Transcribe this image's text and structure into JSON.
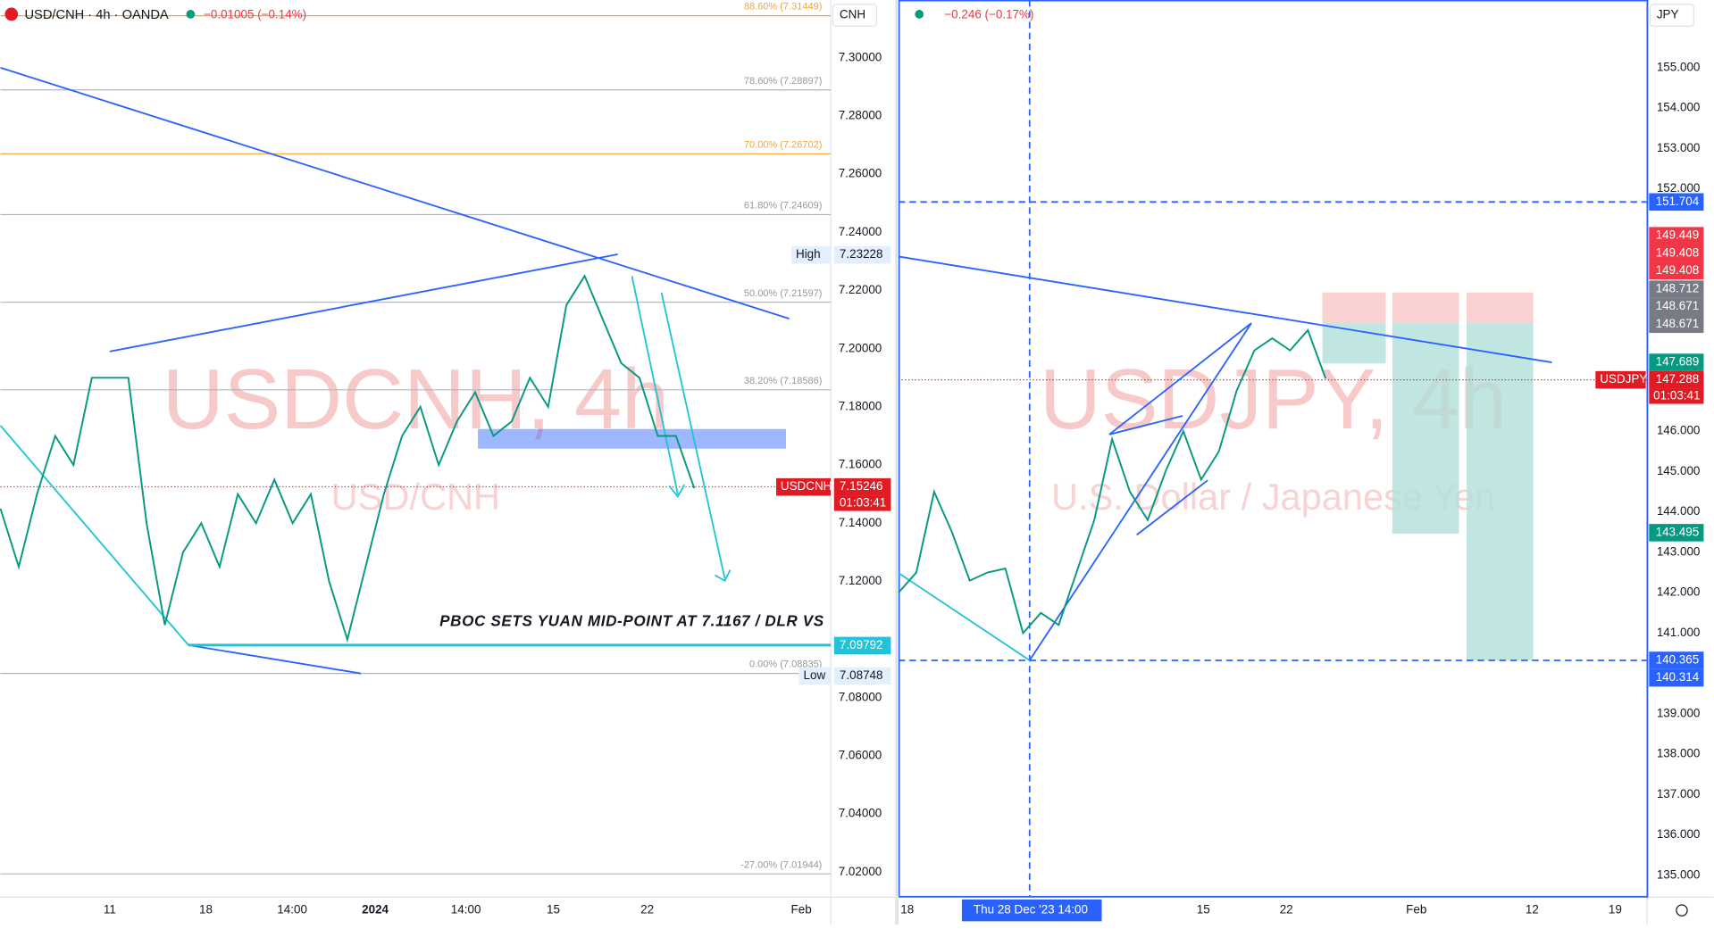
{
  "left": {
    "symbol": "USD/CNH · 4h · OANDA",
    "change": "−0.01005 (−0.14%)",
    "currency": "CNH",
    "watermark": "USDCNH, 4h",
    "watermark_sub": "USD/CNH",
    "annotation": "PBOC SETS YUAN MID-POINT AT 7.1167 / DLR VS",
    "price_labels": [
      "7.30000",
      "7.28000",
      "7.26000",
      "7.24000",
      "7.22000",
      "7.20000",
      "7.18000",
      "7.16000",
      "7.14000",
      "7.12000",
      "7.08000",
      "7.06000",
      "7.04000",
      "7.02000"
    ],
    "fib_levels": [
      {
        "label": "88.60% (7.31449)",
        "price": 7.31449,
        "color": "#f7a531"
      },
      {
        "label": "78.60% (7.28897)",
        "price": 7.28897,
        "color": "#b2b5be"
      },
      {
        "label": "70.00% (7.26702)",
        "price": 7.26702,
        "color": "#f7a531"
      },
      {
        "label": "61.80% (7.24609)",
        "price": 7.24609,
        "color": "#b2b5be"
      },
      {
        "label": "50.00% (7.21597)",
        "price": 7.21597,
        "color": "#b2b5be"
      },
      {
        "label": "38.20% (7.18586)",
        "price": 7.18586,
        "color": "#b2b5be"
      },
      {
        "label": "0.00% (7.08835)",
        "price": 7.08835,
        "color": "#b2b5be"
      },
      {
        "label": "-27.00% (7.01944)",
        "price": 7.01944,
        "color": "#b2b5be"
      }
    ],
    "badges": [
      {
        "tag": "High",
        "value": "7.23228",
        "color": "#e3effd"
      },
      {
        "tag": "USDCNH",
        "value": "7.15246",
        "timer": "01:03:41",
        "color": "#e01b24"
      },
      {
        "value": "7.09792",
        "color": "#22c3d8"
      },
      {
        "tag": "Low",
        "value": "7.08748",
        "color": "#e3effd"
      }
    ],
    "time_labels": [
      "11",
      "18",
      "14:00",
      "2024",
      "14:00",
      "15",
      "22",
      "Feb"
    ],
    "price_path": [
      7.145,
      7.125,
      7.15,
      7.17,
      7.16,
      7.19,
      7.19,
      7.19,
      7.14,
      7.105,
      7.13,
      7.14,
      7.125,
      7.15,
      7.14,
      7.155,
      7.14,
      7.15,
      7.12,
      7.1,
      7.125,
      7.15,
      7.17,
      7.18,
      7.16,
      7.175,
      7.185,
      7.17,
      7.175,
      7.19,
      7.18,
      7.215,
      7.225,
      7.21,
      7.195,
      7.19,
      7.17,
      7.17,
      7.152
    ]
  },
  "right": {
    "change": "−0.246 (−0.17%)",
    "currency": "JPY",
    "watermark": "USDJPY, 4h",
    "watermark_sub": "U.S. Dollar / Japanese Yen",
    "price_labels": [
      "155.000",
      "154.000",
      "153.000",
      "152.000",
      "146.000",
      "145.000",
      "144.000",
      "143.000",
      "142.000",
      "141.000",
      "139.000",
      "138.000",
      "137.000",
      "136.000",
      "135.000"
    ],
    "badges": [
      {
        "value": "151.704",
        "color": "#2962ff"
      },
      {
        "value": "149.449",
        "color": "#f23645"
      },
      {
        "value": "149.408",
        "color": "#f23645"
      },
      {
        "value": "149.408",
        "color": "#f23645"
      },
      {
        "value": "148.712",
        "color": "#787b86"
      },
      {
        "value": "148.671",
        "color": "#787b86"
      },
      {
        "value": "148.671",
        "color": "#787b86"
      },
      {
        "value": "147.689",
        "color": "#089981"
      },
      {
        "tag": "USDJPY",
        "value": "147.288",
        "timer": "01:03:41",
        "color": "#e01b24"
      },
      {
        "value": "143.495",
        "color": "#089981"
      },
      {
        "value": "140.365",
        "color": "#2962ff"
      },
      {
        "value": "140.314",
        "color": "#2962ff"
      }
    ],
    "time_labels": [
      "18",
      "Thu 28 Dec '23  14:00",
      "15",
      "22",
      "Feb",
      "12",
      "19"
    ],
    "price_path": [
      142.0,
      142.5,
      144.5,
      143.5,
      142.3,
      142.5,
      142.6,
      141.0,
      141.5,
      141.2,
      142.5,
      143.8,
      145.8,
      144.5,
      143.8,
      145.0,
      146.0,
      144.8,
      145.5,
      147.0,
      148.0,
      148.3,
      148.0,
      148.5,
      147.3
    ]
  }
}
